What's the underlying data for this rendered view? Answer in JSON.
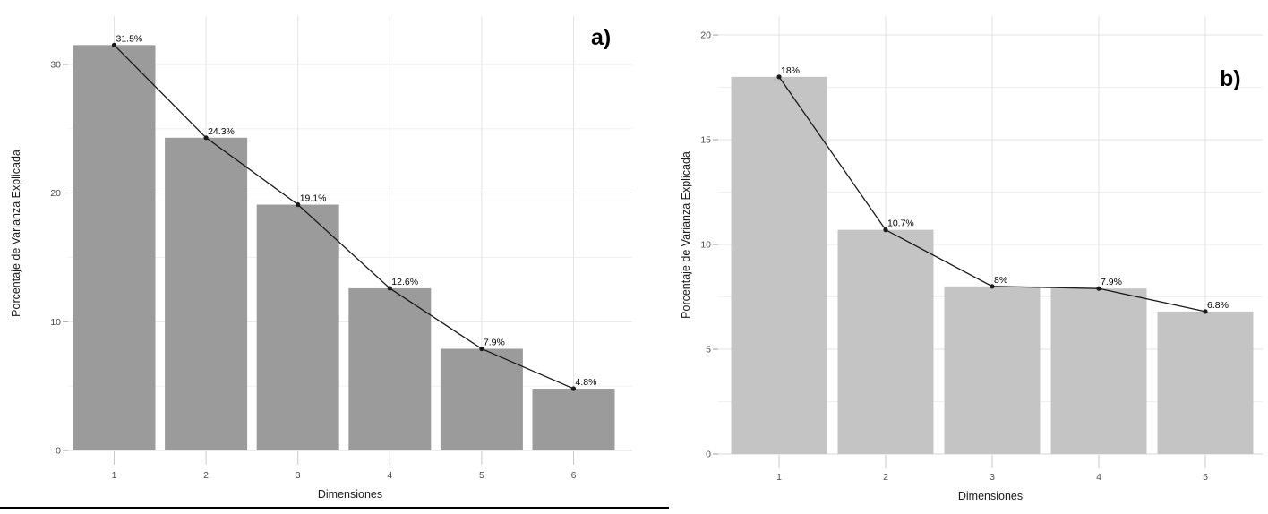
{
  "figure": {
    "panel_labels": {
      "a": "a)",
      "b": "b)"
    }
  },
  "colors": {
    "background": "#ffffff",
    "grid_major": "#e3e3e3",
    "grid_minor": "#f0f0f0",
    "axis_line_zero": "#d9d9d9",
    "y_tick_mark": "#9e9e9e",
    "x_tick_mark": "#c9c9c9",
    "tick_label": "#4d4d4d",
    "axis_title": "#1a1a1a",
    "point_label": "#000000",
    "page_rule": "#000000"
  },
  "chart_data": [
    {
      "id": "a",
      "type": "bar",
      "overlay": "line-with-points",
      "panel_label": "a)",
      "categories": [
        "1",
        "2",
        "3",
        "4",
        "5",
        "6"
      ],
      "values": [
        31.5,
        24.3,
        19.1,
        12.6,
        7.9,
        4.8
      ],
      "point_labels": [
        "31.5%",
        "24.3%",
        "19.1%",
        "12.6%",
        "7.9%",
        "4.8%"
      ],
      "xlabel": "Dimensiones",
      "ylabel": "Porcentaje de Varianza Explicada",
      "ylim": [
        0,
        33.75
      ],
      "yticks_major": [
        0,
        10,
        20,
        30
      ],
      "ytick_labels": [
        "0",
        "10",
        "20",
        "30"
      ],
      "yticks_minor": [
        5,
        15,
        25
      ],
      "grid": true,
      "legend": "none",
      "bar_color": "#9b9b9b",
      "line_color": "#1a1a1a"
    },
    {
      "id": "b",
      "type": "bar",
      "overlay": "line-with-points",
      "panel_label": "b)",
      "categories": [
        "1",
        "2",
        "3",
        "4",
        "5"
      ],
      "values": [
        18,
        10.7,
        8,
        7.9,
        6.8
      ],
      "point_labels": [
        "18%",
        "10.7%",
        "8%",
        "7.9%",
        "6.8%"
      ],
      "xlabel": "Dimensiones",
      "ylabel": "Porcentaje de Varianza Explicada",
      "ylim": [
        0,
        20.9
      ],
      "yticks_major": [
        0,
        5,
        10,
        15,
        20
      ],
      "ytick_labels": [
        "0",
        "5",
        "10",
        "15",
        "20"
      ],
      "yticks_minor": [
        2.5,
        7.5,
        12.5,
        17.5
      ],
      "grid": true,
      "legend": "none",
      "bar_color": "#c4c4c4",
      "line_color": "#1a1a1a"
    }
  ]
}
